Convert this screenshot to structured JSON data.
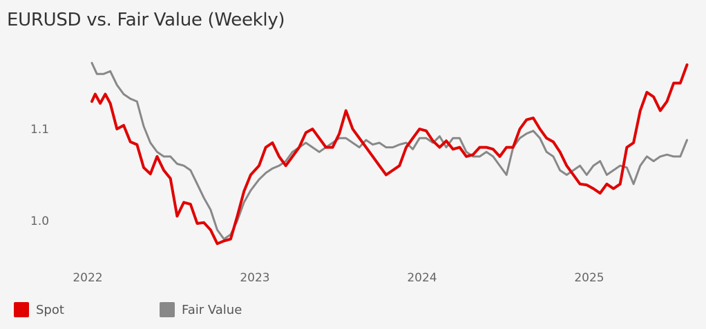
{
  "chart_data": {
    "type": "line",
    "title": "EURUSD vs. Fair Value (Weekly)",
    "xlabel": "",
    "ylabel": "",
    "x_ticks": [
      "2022",
      "2023",
      "2024",
      "2025"
    ],
    "y_ticks": [
      "1.0",
      "1.1"
    ],
    "ylim": [
      0.95,
      1.2
    ],
    "grid": false,
    "legend_position": "bottom-left",
    "series": [
      {
        "name": "Spot",
        "color": "#e00000",
        "points": [
          [
            2022.0,
            1.13
          ],
          [
            2022.02,
            1.138
          ],
          [
            2022.05,
            1.128
          ],
          [
            2022.08,
            1.138
          ],
          [
            2022.11,
            1.128
          ],
          [
            2022.15,
            1.1
          ],
          [
            2022.19,
            1.104
          ],
          [
            2022.23,
            1.086
          ],
          [
            2022.27,
            1.083
          ],
          [
            2022.31,
            1.058
          ],
          [
            2022.35,
            1.051
          ],
          [
            2022.39,
            1.07
          ],
          [
            2022.43,
            1.055
          ],
          [
            2022.47,
            1.046
          ],
          [
            2022.51,
            1.005
          ],
          [
            2022.55,
            1.02
          ],
          [
            2022.59,
            1.018
          ],
          [
            2022.63,
            0.997
          ],
          [
            2022.67,
            0.998
          ],
          [
            2022.71,
            0.99
          ],
          [
            2022.75,
            0.975
          ],
          [
            2022.79,
            0.978
          ],
          [
            2022.83,
            0.98
          ],
          [
            2022.87,
            1.005
          ],
          [
            2022.91,
            1.032
          ],
          [
            2022.95,
            1.05
          ],
          [
            2023.0,
            1.06
          ],
          [
            2023.04,
            1.08
          ],
          [
            2023.08,
            1.085
          ],
          [
            2023.12,
            1.07
          ],
          [
            2023.16,
            1.06
          ],
          [
            2023.2,
            1.07
          ],
          [
            2023.24,
            1.08
          ],
          [
            2023.28,
            1.096
          ],
          [
            2023.32,
            1.1
          ],
          [
            2023.36,
            1.09
          ],
          [
            2023.4,
            1.08
          ],
          [
            2023.44,
            1.08
          ],
          [
            2023.48,
            1.095
          ],
          [
            2023.52,
            1.12
          ],
          [
            2023.56,
            1.1
          ],
          [
            2023.6,
            1.09
          ],
          [
            2023.64,
            1.08
          ],
          [
            2023.68,
            1.07
          ],
          [
            2023.72,
            1.06
          ],
          [
            2023.76,
            1.05
          ],
          [
            2023.8,
            1.055
          ],
          [
            2023.84,
            1.06
          ],
          [
            2023.88,
            1.08
          ],
          [
            2023.92,
            1.09
          ],
          [
            2023.96,
            1.1
          ],
          [
            2024.0,
            1.098
          ],
          [
            2024.04,
            1.087
          ],
          [
            2024.08,
            1.08
          ],
          [
            2024.12,
            1.087
          ],
          [
            2024.16,
            1.078
          ],
          [
            2024.2,
            1.08
          ],
          [
            2024.24,
            1.07
          ],
          [
            2024.28,
            1.072
          ],
          [
            2024.32,
            1.08
          ],
          [
            2024.36,
            1.08
          ],
          [
            2024.4,
            1.078
          ],
          [
            2024.44,
            1.07
          ],
          [
            2024.48,
            1.08
          ],
          [
            2024.52,
            1.08
          ],
          [
            2024.56,
            1.1
          ],
          [
            2024.6,
            1.11
          ],
          [
            2024.64,
            1.112
          ],
          [
            2024.68,
            1.1
          ],
          [
            2024.72,
            1.09
          ],
          [
            2024.76,
            1.086
          ],
          [
            2024.8,
            1.075
          ],
          [
            2024.84,
            1.06
          ],
          [
            2024.88,
            1.05
          ],
          [
            2024.92,
            1.04
          ],
          [
            2024.96,
            1.039
          ],
          [
            2025.0,
            1.035
          ],
          [
            2025.04,
            1.03
          ],
          [
            2025.08,
            1.04
          ],
          [
            2025.12,
            1.035
          ],
          [
            2025.16,
            1.04
          ],
          [
            2025.2,
            1.08
          ],
          [
            2025.24,
            1.085
          ],
          [
            2025.28,
            1.12
          ],
          [
            2025.32,
            1.14
          ],
          [
            2025.36,
            1.135
          ],
          [
            2025.4,
            1.12
          ],
          [
            2025.44,
            1.13
          ],
          [
            2025.48,
            1.15
          ],
          [
            2025.52,
            1.15
          ],
          [
            2025.56,
            1.17
          ]
        ]
      },
      {
        "name": "Fair Value",
        "color": "#888888",
        "points": [
          [
            2022.0,
            1.172
          ],
          [
            2022.03,
            1.16
          ],
          [
            2022.07,
            1.16
          ],
          [
            2022.11,
            1.163
          ],
          [
            2022.15,
            1.148
          ],
          [
            2022.19,
            1.138
          ],
          [
            2022.23,
            1.133
          ],
          [
            2022.27,
            1.13
          ],
          [
            2022.31,
            1.103
          ],
          [
            2022.35,
            1.085
          ],
          [
            2022.39,
            1.075
          ],
          [
            2022.43,
            1.07
          ],
          [
            2022.47,
            1.07
          ],
          [
            2022.51,
            1.062
          ],
          [
            2022.55,
            1.06
          ],
          [
            2022.59,
            1.055
          ],
          [
            2022.63,
            1.04
          ],
          [
            2022.67,
            1.025
          ],
          [
            2022.71,
            1.012
          ],
          [
            2022.75,
            0.99
          ],
          [
            2022.79,
            0.98
          ],
          [
            2022.83,
            0.985
          ],
          [
            2022.87,
            1.0
          ],
          [
            2022.91,
            1.02
          ],
          [
            2022.95,
            1.033
          ],
          [
            2023.0,
            1.045
          ],
          [
            2023.04,
            1.052
          ],
          [
            2023.08,
            1.057
          ],
          [
            2023.12,
            1.06
          ],
          [
            2023.16,
            1.065
          ],
          [
            2023.2,
            1.075
          ],
          [
            2023.24,
            1.08
          ],
          [
            2023.28,
            1.085
          ],
          [
            2023.32,
            1.08
          ],
          [
            2023.36,
            1.075
          ],
          [
            2023.4,
            1.08
          ],
          [
            2023.44,
            1.085
          ],
          [
            2023.48,
            1.09
          ],
          [
            2023.52,
            1.09
          ],
          [
            2023.56,
            1.085
          ],
          [
            2023.6,
            1.08
          ],
          [
            2023.64,
            1.088
          ],
          [
            2023.68,
            1.083
          ],
          [
            2023.72,
            1.085
          ],
          [
            2023.76,
            1.08
          ],
          [
            2023.8,
            1.08
          ],
          [
            2023.84,
            1.083
          ],
          [
            2023.88,
            1.085
          ],
          [
            2023.92,
            1.078
          ],
          [
            2023.96,
            1.09
          ],
          [
            2024.0,
            1.09
          ],
          [
            2024.04,
            1.085
          ],
          [
            2024.08,
            1.092
          ],
          [
            2024.12,
            1.08
          ],
          [
            2024.16,
            1.09
          ],
          [
            2024.2,
            1.09
          ],
          [
            2024.24,
            1.075
          ],
          [
            2024.28,
            1.07
          ],
          [
            2024.32,
            1.07
          ],
          [
            2024.36,
            1.075
          ],
          [
            2024.4,
            1.07
          ],
          [
            2024.44,
            1.06
          ],
          [
            2024.48,
            1.05
          ],
          [
            2024.52,
            1.08
          ],
          [
            2024.56,
            1.09
          ],
          [
            2024.6,
            1.095
          ],
          [
            2024.64,
            1.098
          ],
          [
            2024.68,
            1.09
          ],
          [
            2024.72,
            1.075
          ],
          [
            2024.76,
            1.07
          ],
          [
            2024.8,
            1.055
          ],
          [
            2024.84,
            1.05
          ],
          [
            2024.88,
            1.055
          ],
          [
            2024.92,
            1.06
          ],
          [
            2024.96,
            1.05
          ],
          [
            2025.0,
            1.06
          ],
          [
            2025.04,
            1.065
          ],
          [
            2025.08,
            1.05
          ],
          [
            2025.12,
            1.055
          ],
          [
            2025.16,
            1.06
          ],
          [
            2025.2,
            1.058
          ],
          [
            2025.24,
            1.04
          ],
          [
            2025.28,
            1.06
          ],
          [
            2025.32,
            1.07
          ],
          [
            2025.36,
            1.065
          ],
          [
            2025.4,
            1.07
          ],
          [
            2025.44,
            1.072
          ],
          [
            2025.48,
            1.07
          ],
          [
            2025.52,
            1.07
          ],
          [
            2025.56,
            1.088
          ]
        ]
      }
    ]
  }
}
